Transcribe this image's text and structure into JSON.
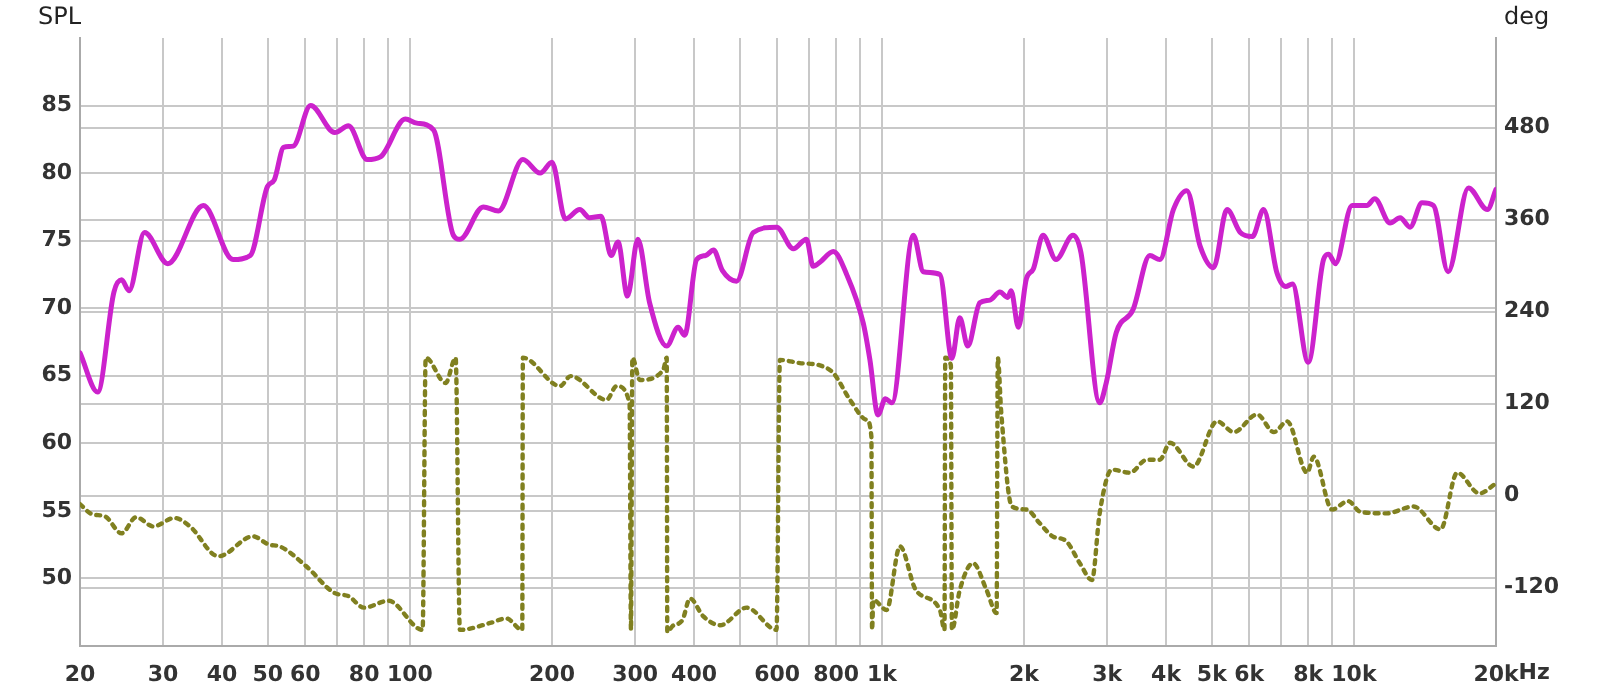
{
  "chart_data": {
    "type": "line",
    "ylabel": "SPL",
    "y2label": "deg",
    "log": "x",
    "grid": true,
    "legend": false,
    "marker": "none",
    "xlim": [
      20,
      20000
    ],
    "xticks": [
      20,
      30,
      40,
      50,
      60,
      {
        "value": 70,
        "label": null
      },
      80,
      {
        "value": 90,
        "label": null
      },
      100,
      200,
      300,
      400,
      {
        "value": 500,
        "label": null
      },
      600,
      {
        "value": 700,
        "label": null
      },
      800,
      {
        "value": 900,
        "label": null
      },
      {
        "value": 1000,
        "label": "1k"
      },
      {
        "value": 2000,
        "label": "2k"
      },
      {
        "value": 3000,
        "label": "3k"
      },
      {
        "value": 4000,
        "label": "4k"
      },
      {
        "value": 5000,
        "label": "5k"
      },
      {
        "value": 6000,
        "label": "6k"
      },
      {
        "value": 7000,
        "label": null
      },
      {
        "value": 8000,
        "label": "8k"
      },
      {
        "value": 9000,
        "label": null
      },
      {
        "value": 10000,
        "label": "10k"
      },
      {
        "value": 20000,
        "label": "20k"
      }
    ],
    "xlabel": "Hz",
    "ylim": [
      45,
      90
    ],
    "yticks": [
      50,
      55,
      60,
      65,
      70,
      75,
      80,
      85
    ],
    "y2lim": [
      -196,
      597
    ],
    "y2ticks": [
      -120,
      0,
      120,
      240,
      360,
      480
    ],
    "series": [
      {
        "color": "#cc22cc",
        "line_style": "solid",
        "x": [
          20,
          21.8,
          23.6,
          24.5,
          25.4,
          27.4,
          30.7,
          36.5,
          42.2,
          45.9,
          49.9,
          51.6,
          54,
          56.6,
          61.6,
          69.3,
          74.1,
          81.2,
          86.6,
          97.8,
          103.4,
          112.2,
          123.6,
          127.6,
          143,
          154,
          173.5,
          188.8,
          200,
          213.5,
          229,
          240,
          254,
          267,
          276,
          289,
          304,
          322,
          350,
          370,
          382,
          405,
          423,
          440,
          459,
          492,
          534,
          598,
          649,
          692,
          715,
          739,
          789,
          842,
          913,
          943,
          981,
          1017,
          1050,
          1166,
          1224,
          1327,
          1407,
          1462,
          1520,
          1612,
          1693,
          1778,
          1848,
          1878,
          1946,
          2024,
          2093,
          2194,
          2338,
          2540,
          2641,
          2893,
          2988,
          3137,
          3405,
          3695,
          3881,
          4145,
          4426,
          4722,
          5042,
          5383,
          5745,
          6093,
          6436,
          6871,
          7170,
          7406,
          8003,
          8622,
          8840,
          9134,
          9912,
          10650,
          11070,
          11930,
          12530,
          13150,
          13940,
          14740,
          15830,
          17480,
          19180,
          20000
        ],
        "values": [
          66.7,
          63.8,
          71.2,
          72.1,
          71.3,
          75.6,
          73.3,
          77.6,
          73.6,
          73.9,
          79.0,
          79.5,
          81.9,
          82.0,
          85.0,
          83.0,
          83.5,
          81.0,
          81.2,
          84.0,
          83.7,
          83.2,
          75.4,
          75.1,
          77.5,
          77.2,
          81.0,
          80.0,
          80.8,
          76.6,
          77.3,
          76.7,
          76.8,
          73.9,
          74.9,
          70.9,
          75.1,
          70.4,
          67.2,
          68.6,
          68.0,
          73.6,
          73.9,
          74.3,
          72.8,
          72.0,
          75.6,
          76.0,
          74.4,
          75.1,
          73.1,
          73.4,
          74.2,
          72.5,
          68.9,
          66.2,
          62.1,
          63.3,
          63.0,
          75.4,
          72.7,
          72.5,
          66.3,
          69.3,
          67.2,
          70.4,
          70.6,
          71.2,
          70.8,
          71.3,
          68.6,
          72.2,
          72.9,
          75.4,
          73.6,
          75.4,
          74.1,
          63.0,
          64.5,
          68.2,
          69.9,
          73.9,
          73.6,
          77.3,
          78.7,
          74.6,
          73.0,
          77.3,
          75.6,
          75.3,
          77.3,
          72.6,
          71.6,
          71.8,
          66.0,
          73.6,
          74.0,
          73.3,
          77.6,
          77.6,
          78.1,
          76.3,
          76.7,
          76.0,
          77.8,
          77.6,
          72.7,
          78.9,
          77.3,
          78.8
        ]
      },
      {
        "color": "#808020",
        "line_style": "dotted",
        "axis": "y2",
        "x": [
          20,
          21.2,
          22.6,
          24.5,
          26.3,
          28.6,
          31.7,
          34.2,
          39.3,
          46.5,
          50.4,
          52.9,
          60.3,
          69.3,
          74.1,
          79.9,
          90,
          106.4,
          108,
          119,
          125,
          127.6,
          148,
          160,
          173,
          173.5,
          208,
          219,
          261,
          274,
          292,
          294,
          296,
          307,
          344,
          350,
          351,
          360,
          378,
          392,
          418,
          454,
          517,
          598,
          608,
          670,
          739,
          789,
          856,
          928,
          950,
          953,
          959,
          1023,
          1092,
          1180,
          1327,
          1357,
          1362,
          1400,
          1407,
          1462,
          1560,
          1666,
          1750,
          1760,
          1790,
          1885,
          2024,
          2160,
          2300,
          2455,
          2626,
          2786,
          2893,
          3069,
          3353,
          3640,
          3881,
          4077,
          4572,
          5127,
          5566,
          6238,
          6767,
          7222,
          7957,
          8222,
          8987,
          9722,
          10320,
          11730,
          13370,
          15260,
          16550,
          18440,
          20000
        ],
        "values": [
          -11,
          -24,
          -27,
          -49,
          -28,
          -40,
          -29,
          -40,
          -79,
          -53,
          -64,
          -66,
          -92,
          -127,
          -131,
          -146,
          -137,
          -175,
          180,
          147,
          180,
          -175,
          -166,
          -160,
          -175,
          180,
          143,
          156,
          125,
          143,
          121,
          -175,
          180,
          151,
          164,
          180,
          -178,
          -170,
          -162,
          -134,
          -157,
          -169,
          -146,
          -175,
          177,
          173,
          170,
          160,
          125,
          99,
          77,
          -175,
          -136,
          -149,
          -66,
          -123,
          -149,
          -175,
          180,
          170,
          -175,
          -123,
          -88,
          -123,
          -153,
          180,
          108,
          -14,
          -18,
          -36,
          -53,
          -59,
          -88,
          -110,
          -23,
          34,
          30,
          47,
          47,
          69,
          38,
          97,
          83,
          106,
          83,
          97,
          30,
          51,
          -18,
          -7,
          -21,
          -23,
          -14,
          -44,
          30,
          3,
          16
        ]
      }
    ]
  }
}
